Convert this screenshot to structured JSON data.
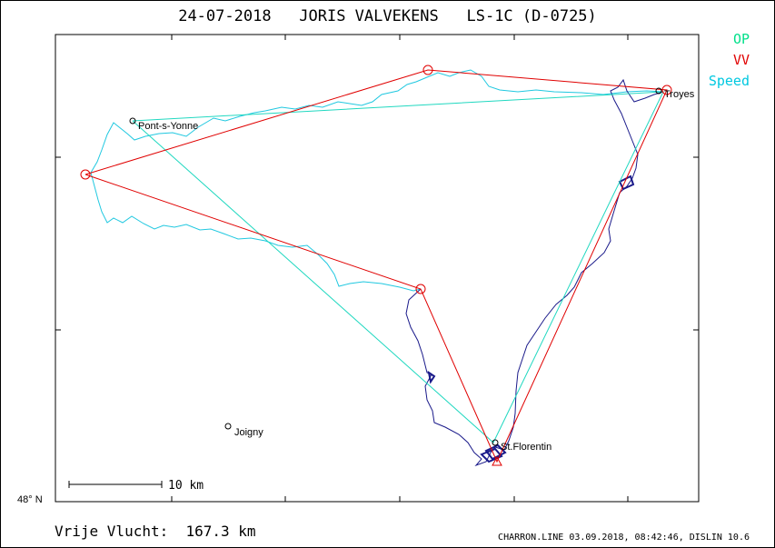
{
  "header": {
    "title": "24-07-2018   JORIS VALVEKENS   LS-1C (D-0725)"
  },
  "legend": {
    "items": [
      {
        "label": "OP",
        "color": "#00e08a"
      },
      {
        "label": "VV",
        "color": "#e00000"
      },
      {
        "label": "Speed",
        "color": "#00c8e0"
      }
    ]
  },
  "map": {
    "places": [
      {
        "name": "Pont-s-Yonne"
      },
      {
        "name": "Troyes"
      },
      {
        "name": "St.Florentin"
      },
      {
        "name": "Joigny"
      }
    ],
    "scale_label": "10 km",
    "latitude_label": "48° N",
    "colors": {
      "task_line": "#e00000",
      "op_line": "#20d8c0",
      "track_fast": "#20c8e0",
      "track_slow": "#1a1a8a",
      "turnpoint": "#e00000"
    }
  },
  "footer": {
    "distance_text": "Vrije Vlucht:  167.3 km",
    "meta_text": "CHARRON.LINE 03.09.2018, 08:42:46, DISLIN 10.6"
  }
}
